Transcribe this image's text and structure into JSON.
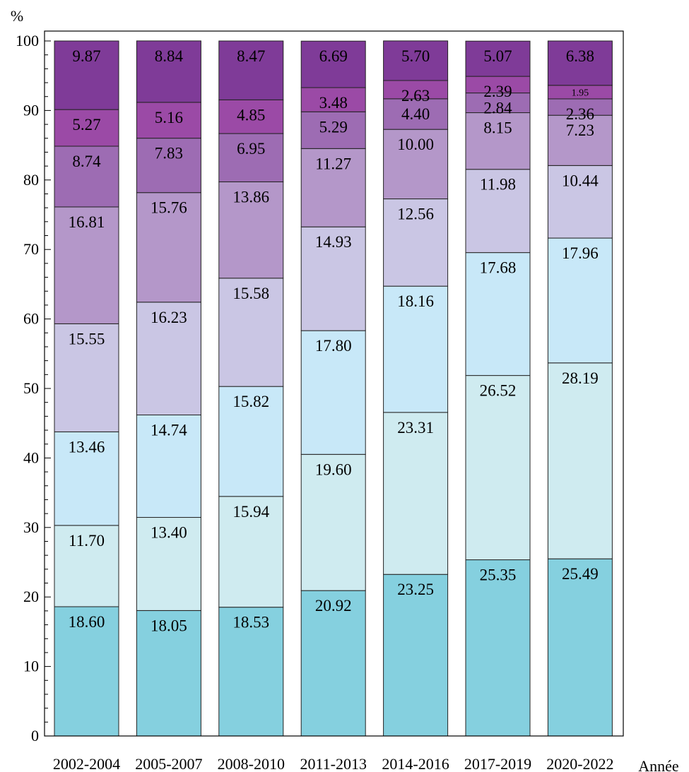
{
  "chart_data": {
    "type": "bar",
    "stacked": true,
    "title": "",
    "xlabel": "Année",
    "ylabel": "%",
    "ylim": [
      0,
      100
    ],
    "yticks": [
      0,
      10,
      20,
      30,
      40,
      50,
      60,
      70,
      80,
      90,
      100
    ],
    "grid": false,
    "legend": "none",
    "categories": [
      "2002-2004",
      "2005-2007",
      "2008-2010",
      "2011-2013",
      "2014-2016",
      "2017-2019",
      "2020-2022"
    ],
    "colors": [
      "#85d0df",
      "#cfebf0",
      "#c8e8f8",
      "#cac6e4",
      "#b497c9",
      "#9d6cb3",
      "#9b4aa6",
      "#7f3b98"
    ],
    "series": [
      {
        "values": [
          18.6,
          18.05,
          18.53,
          20.92,
          23.25,
          25.35,
          25.49
        ]
      },
      {
        "values": [
          11.7,
          13.4,
          15.94,
          19.6,
          23.31,
          26.52,
          28.19
        ]
      },
      {
        "values": [
          13.46,
          14.74,
          15.82,
          17.8,
          18.16,
          17.68,
          17.96
        ]
      },
      {
        "values": [
          15.55,
          16.23,
          15.58,
          14.93,
          12.56,
          11.98,
          10.44
        ]
      },
      {
        "values": [
          16.81,
          15.76,
          13.86,
          11.27,
          10.0,
          8.15,
          7.23
        ]
      },
      {
        "values": [
          8.74,
          7.83,
          6.95,
          5.29,
          4.4,
          2.84,
          2.36
        ]
      },
      {
        "values": [
          5.27,
          5.16,
          4.85,
          3.48,
          2.63,
          2.39,
          1.95
        ]
      },
      {
        "values": [
          9.87,
          8.84,
          8.47,
          6.69,
          5.7,
          5.07,
          6.38
        ]
      }
    ]
  }
}
